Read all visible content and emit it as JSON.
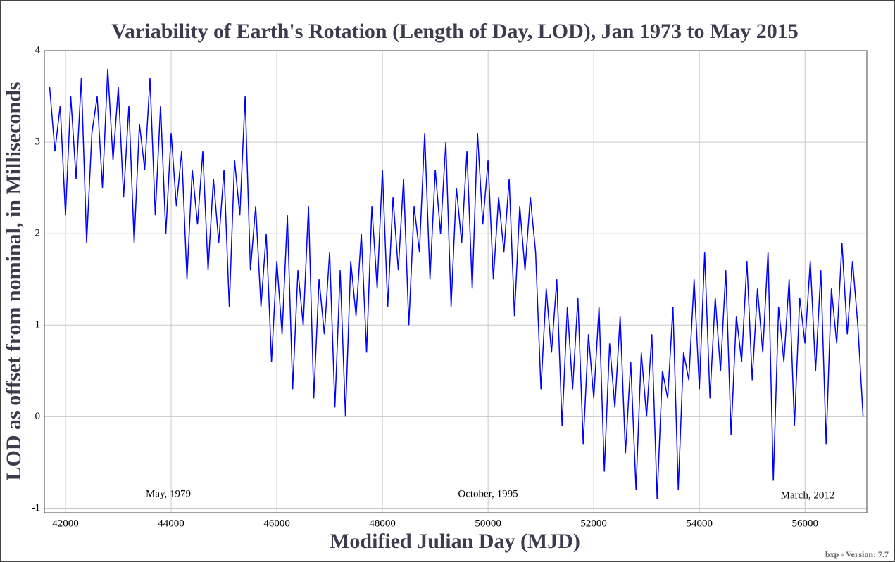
{
  "chart_data": {
    "type": "line",
    "title": "Variability of Earth's Rotation (Length of Day, LOD), Jan 1973 to May 2015",
    "x_label": "Modified Julian Day (MJD)",
    "y_label": "LOD as offset from nominal, in Milliseconds",
    "annotations": [
      "May, 1979",
      "October, 1995",
      "March, 2012"
    ],
    "footer": "bxp - Version: 7.7",
    "color": "#0000ff",
    "grid": true,
    "xlim": [
      41600,
      57170
    ],
    "ylim": [
      -1.05,
      4
    ],
    "xticks": [
      42000,
      44000,
      46000,
      48000,
      50000,
      52000,
      54000,
      56000
    ],
    "yticks": [
      -1,
      0,
      1,
      2,
      3,
      4
    ],
    "x": [
      41700,
      41800,
      41900,
      42000,
      42100,
      42200,
      42300,
      42400,
      42500,
      42600,
      42700,
      42800,
      42900,
      43000,
      43100,
      43200,
      43300,
      43400,
      43500,
      43600,
      43700,
      43800,
      43900,
      44000,
      44100,
      44200,
      44300,
      44400,
      44500,
      44600,
      44700,
      44800,
      44900,
      45000,
      45100,
      45200,
      45300,
      45400,
      45500,
      45600,
      45700,
      45800,
      45900,
      46000,
      46100,
      46200,
      46300,
      46400,
      46500,
      46600,
      46700,
      46800,
      46900,
      47000,
      47100,
      47200,
      47300,
      47400,
      47500,
      47600,
      47700,
      47800,
      47900,
      48000,
      48100,
      48200,
      48300,
      48400,
      48500,
      48600,
      48700,
      48800,
      48900,
      49000,
      49100,
      49200,
      49300,
      49400,
      49500,
      49600,
      49700,
      49800,
      49900,
      50000,
      50100,
      50200,
      50300,
      50400,
      50500,
      50600,
      50700,
      50800,
      50900,
      51000,
      51100,
      51200,
      51300,
      51400,
      51500,
      51600,
      51700,
      51800,
      51900,
      52000,
      52100,
      52200,
      52300,
      52400,
      52500,
      52600,
      52700,
      52800,
      52900,
      53000,
      53100,
      53200,
      53300,
      53400,
      53500,
      53600,
      53700,
      53800,
      53900,
      54000,
      54100,
      54200,
      54300,
      54400,
      54500,
      54600,
      54700,
      54800,
      54900,
      55000,
      55100,
      55200,
      55300,
      55400,
      55500,
      55600,
      55700,
      55800,
      55900,
      56000,
      56100,
      56200,
      56300,
      56400,
      56500,
      56600,
      56700,
      56800,
      56900,
      57000,
      57100
    ],
    "values": [
      3.6,
      2.9,
      3.4,
      2.2,
      3.5,
      2.6,
      3.7,
      1.9,
      3.1,
      3.5,
      2.5,
      3.8,
      2.8,
      3.6,
      2.4,
      3.4,
      1.9,
      3.2,
      2.7,
      3.7,
      2.2,
      3.4,
      2.0,
      3.1,
      2.3,
      2.9,
      1.5,
      2.7,
      2.1,
      2.9,
      1.6,
      2.6,
      1.9,
      2.7,
      1.2,
      2.8,
      2.2,
      3.5,
      1.6,
      2.3,
      1.2,
      2.0,
      0.6,
      1.7,
      0.9,
      2.2,
      0.3,
      1.6,
      1.0,
      2.3,
      0.2,
      1.5,
      0.9,
      1.8,
      0.1,
      1.6,
      0.0,
      1.7,
      1.1,
      2.0,
      0.7,
      2.3,
      1.4,
      2.7,
      1.2,
      2.4,
      1.6,
      2.6,
      1.0,
      2.3,
      1.8,
      3.1,
      1.5,
      2.7,
      2.0,
      3.0,
      1.2,
      2.5,
      1.9,
      2.9,
      1.4,
      3.1,
      2.1,
      2.8,
      1.5,
      2.4,
      1.8,
      2.6,
      1.1,
      2.3,
      1.6,
      2.4,
      1.8,
      0.3,
      1.4,
      0.7,
      1.5,
      -0.1,
      1.2,
      0.3,
      1.3,
      -0.3,
      0.9,
      0.2,
      1.2,
      -0.6,
      0.8,
      0.1,
      1.1,
      -0.4,
      0.6,
      -0.8,
      0.7,
      0.0,
      0.9,
      -0.9,
      0.5,
      0.2,
      1.2,
      -0.8,
      0.7,
      0.4,
      1.5,
      0.3,
      1.8,
      0.2,
      1.3,
      0.5,
      1.6,
      -0.2,
      1.1,
      0.6,
      1.7,
      0.4,
      1.4,
      0.7,
      1.8,
      -0.7,
      1.2,
      0.6,
      1.5,
      -0.1,
      1.3,
      0.8,
      1.7,
      0.5,
      1.6,
      -0.3,
      1.4,
      0.8,
      1.9,
      0.9,
      1.7,
      1.0,
      0.0
    ]
  }
}
